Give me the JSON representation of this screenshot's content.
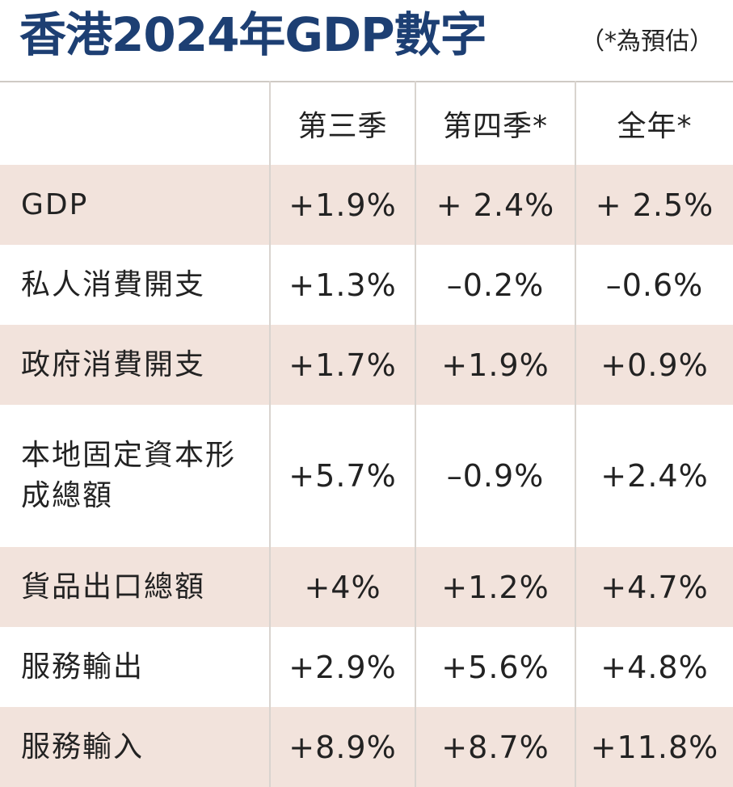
{
  "header": {
    "title": "香港2024年GDP數字",
    "note": "（*為預估）"
  },
  "table": {
    "columns": [
      "",
      "第三季",
      "第四季*",
      "全年*"
    ],
    "rows": [
      {
        "label": "GDP",
        "values": [
          "+1.9%",
          "+ 2.4%",
          "+ 2.5%"
        ]
      },
      {
        "label": "私人消費開支",
        "values": [
          "+1.3%",
          "–0.2%",
          "–0.6%"
        ]
      },
      {
        "label": "政府消費開支",
        "values": [
          "+1.7%",
          "+1.9%",
          "+0.9%"
        ]
      },
      {
        "label": "本地固定資本形成總額",
        "values": [
          "+5.7%",
          "–0.9%",
          "+2.4%"
        ]
      },
      {
        "label": "貨品出口總額",
        "values": [
          "+4%",
          "+1.2%",
          "+4.7%"
        ]
      },
      {
        "label": "服務輸出",
        "values": [
          "+2.9%",
          "+5.6%",
          "+4.8%"
        ]
      },
      {
        "label": "服務輸入",
        "values": [
          "+8.9%",
          "+8.7%",
          "+11.8%"
        ]
      }
    ]
  },
  "colors": {
    "title": "#1d3f73",
    "column_header": "#b3212b",
    "shaded_row": "#f2e3dc"
  }
}
